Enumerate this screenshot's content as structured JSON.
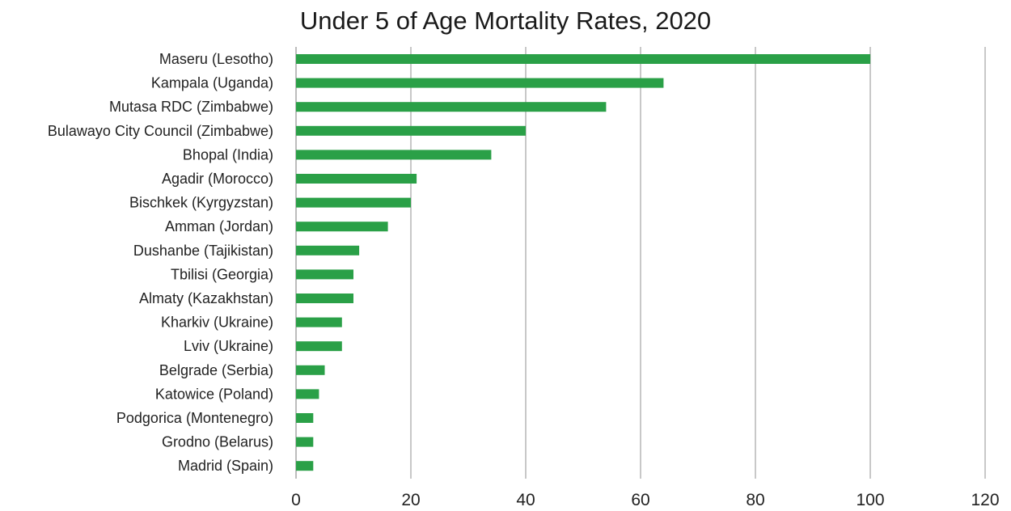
{
  "chart_data": {
    "type": "bar",
    "orientation": "horizontal",
    "title": "Under 5 of Age Mortality Rates, 2020",
    "xlabel": "",
    "ylabel": "",
    "categories": [
      "Maseru (Lesotho)",
      "Kampala (Uganda)",
      "Mutasa RDC (Zimbabwe)",
      "Bulawayo City Council (Zimbabwe)",
      "Bhopal (India)",
      "Agadir (Morocco)",
      "Bischkek (Kyrgyzstan)",
      "Amman (Jordan)",
      "Dushanbe (Tajikistan)",
      "Tbilisi (Georgia)",
      "Almaty (Kazakhstan)",
      "Kharkiv (Ukraine)",
      "Lviv (Ukraine)",
      "Belgrade (Serbia)",
      "Katowice (Poland)",
      "Podgorica (Montenegro)",
      "Grodno (Belarus)",
      "Madrid (Spain)"
    ],
    "values": [
      100,
      64,
      54,
      40,
      34,
      21,
      20,
      16,
      11,
      10,
      10,
      8,
      8,
      5,
      4,
      3,
      3,
      3
    ],
    "xlim": [
      0,
      120
    ],
    "xticks": [
      0,
      20,
      40,
      60,
      80,
      100,
      120
    ],
    "grid": true,
    "bar_color": "#2aa047",
    "grid_color": "#c8c8c8"
  }
}
